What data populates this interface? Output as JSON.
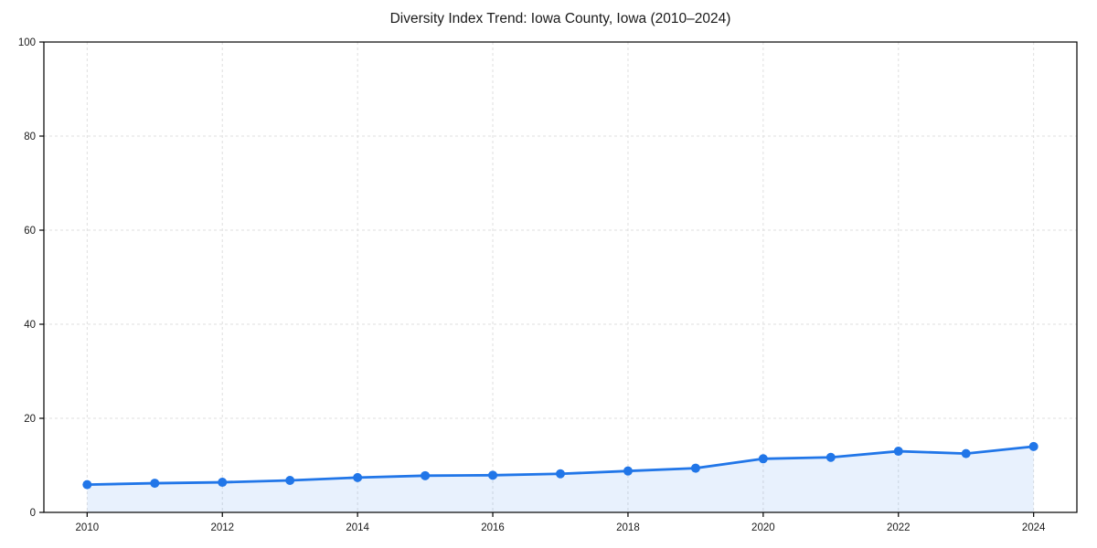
{
  "chart_data": {
    "type": "line",
    "title": "Diversity Index Trend: Iowa County, Iowa (2010–2024)",
    "x": [
      2010,
      2011,
      2012,
      2013,
      2014,
      2015,
      2016,
      2017,
      2018,
      2019,
      2020,
      2021,
      2022,
      2023,
      2024
    ],
    "series": [
      {
        "name": "Diversity Index",
        "values": [
          5.9,
          6.2,
          6.4,
          6.8,
          7.4,
          7.8,
          7.9,
          8.2,
          8.8,
          9.4,
          11.4,
          11.7,
          13.0,
          12.5,
          14.0
        ]
      }
    ],
    "xlabel": "",
    "ylabel": "",
    "x_ticks": [
      2010,
      2012,
      2014,
      2016,
      2018,
      2020,
      2022,
      2024
    ],
    "y_ticks": [
      0,
      20,
      40,
      60,
      80,
      100
    ],
    "xlim": [
      2009.36,
      2024.64
    ],
    "ylim": [
      0,
      100
    ],
    "grid": true,
    "grid_style": "dashed",
    "legend": "none",
    "marker": "circle",
    "line_color": "#2176e8",
    "fill_color": "rgba(33, 118, 232, 0.10)",
    "grid_color": "#dfdfdf",
    "spine_color": "#000000",
    "text_color": "#1a1a1a"
  }
}
